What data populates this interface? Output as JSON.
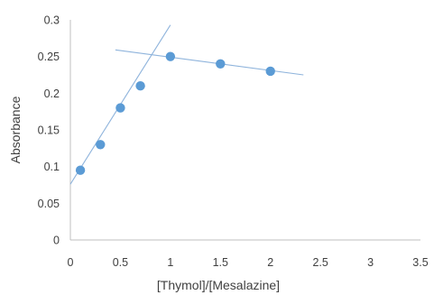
{
  "chart_data": {
    "type": "scatter",
    "title": "",
    "xlabel": "[Thymol]/[Mesalazine]",
    "ylabel": "Absorbance",
    "xlim": [
      0,
      3.5
    ],
    "ylim": [
      0,
      0.3
    ],
    "x_ticks": [
      "0",
      "0.5",
      "1",
      "1.5",
      "2",
      "2.5",
      "3",
      "3.5"
    ],
    "y_ticks": [
      "0",
      "0.05",
      "0.1",
      "0.15",
      "0.2",
      "0.25",
      "0.3"
    ],
    "grid": false,
    "legend": "none",
    "series": [
      {
        "x": [
          0.1,
          0.3,
          0.5,
          0.7,
          1.0,
          1.5,
          2.0
        ],
        "y": [
          0.095,
          0.13,
          0.18,
          0.21,
          0.25,
          0.24,
          0.23
        ],
        "color": "#5b9bd5"
      }
    ],
    "trendlines": [
      {
        "from": [
          0.0,
          0.076
        ],
        "to": [
          1.0,
          0.293
        ],
        "color": "#8fb4dc"
      },
      {
        "from": [
          0.45,
          0.259
        ],
        "to": [
          2.33,
          0.225
        ],
        "color": "#8fb4dc"
      }
    ]
  }
}
